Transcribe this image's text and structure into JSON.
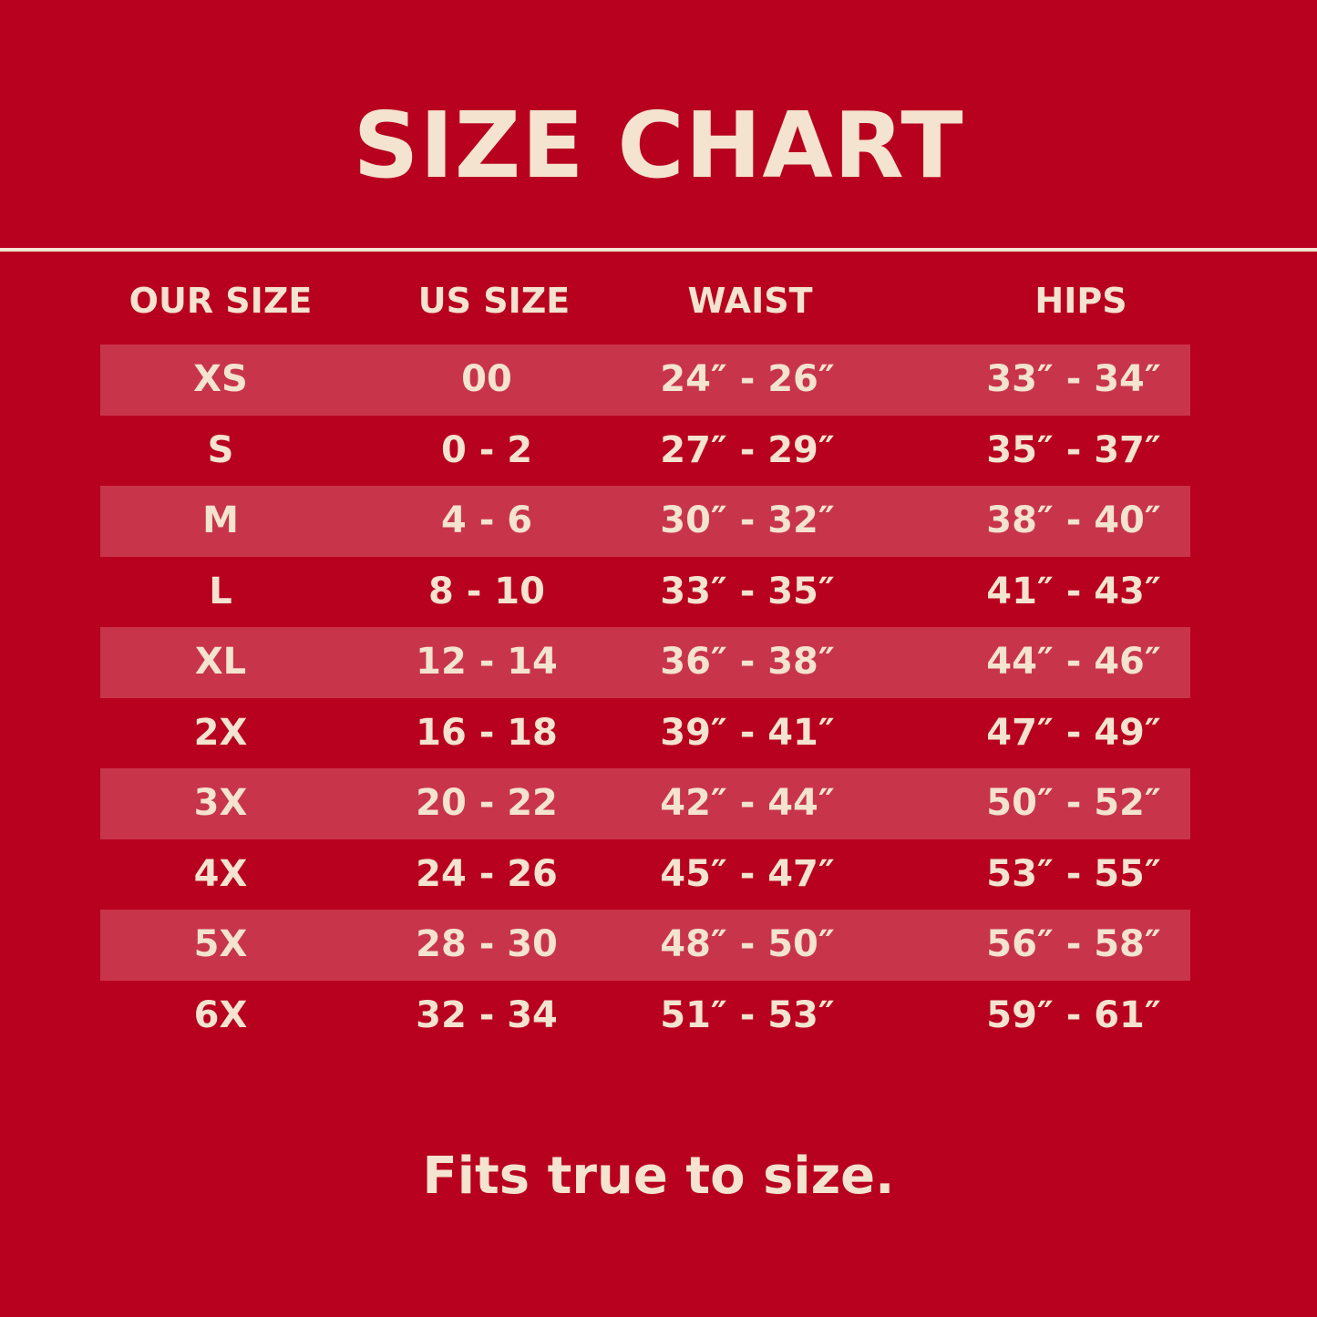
{
  "title": "SIZE CHART",
  "colors": {
    "background": "#b8001f",
    "stripe": "#c8354a",
    "text": "#f3e3cf"
  },
  "table": {
    "headers": [
      "OUR SIZE",
      "US SIZE",
      "WAIST",
      "HIPS"
    ],
    "rows": [
      [
        "XS",
        "00",
        "24″ - 26″",
        "33″ - 34″"
      ],
      [
        "S",
        "0 - 2",
        "27″ - 29″",
        "35″ - 37″"
      ],
      [
        "M",
        "4 - 6",
        "30″ - 32″",
        "38″ - 40″"
      ],
      [
        "L",
        "8 - 10",
        "33″ - 35″",
        "41″ - 43″"
      ],
      [
        "XL",
        "12 - 14",
        "36″ - 38″",
        "44″ - 46″"
      ],
      [
        "2X",
        "16 - 18",
        "39″ - 41″",
        "47″ - 49″"
      ],
      [
        "3X",
        "20 - 22",
        "42″ - 44″",
        "50″ - 52″"
      ],
      [
        "4X",
        "24 - 26",
        "45″ - 47″",
        "53″ - 55″"
      ],
      [
        "5X",
        "28 - 30",
        "48″ - 50″",
        "56″ - 58″"
      ],
      [
        "6X",
        "32 - 34",
        "51″ - 53″",
        "59″ - 61″"
      ]
    ]
  },
  "footer": "Fits true to size."
}
